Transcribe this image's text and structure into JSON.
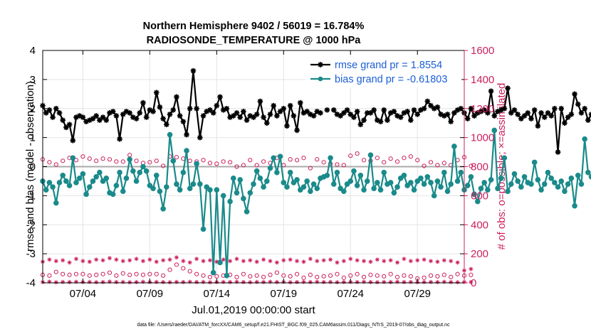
{
  "chart_data": {
    "type": "line",
    "title": "Northern Hemisphere 9402 / 56019 = 16.784%",
    "subtitle": "RADIOSONDE_TEMPERATURE @ 1000 hPa",
    "xlabel": "Jul.01,2019 00:00:00 start",
    "ylabel_left": "rmse and bias (model - observation)",
    "ylabel_right": "# of obs: o=possible; ×=assimilated",
    "footer": "data file: /Users/raeder/DAI/ATM_forcXX/CAM6_setup/f.e21.FHIST_BGC.f09_025.CAM6assim.011/Diags_NTrS_2019-07/obs_diag_output.nc",
    "x_range": [
      0,
      31.5
    ],
    "x_ticks": [
      {
        "value": 3,
        "label": "07/04"
      },
      {
        "value": 8,
        "label": "07/09"
      },
      {
        "value": 13,
        "label": "07/14"
      },
      {
        "value": 18,
        "label": "07/19"
      },
      {
        "value": 23,
        "label": "07/24"
      },
      {
        "value": 28,
        "label": "07/29"
      }
    ],
    "y_left_range": [
      -4,
      4
    ],
    "y_left_ticks": [
      "-4",
      "-3",
      "-2",
      "-1",
      "0",
      "1",
      "2",
      "3",
      "4"
    ],
    "y_right_range": [
      0,
      1600
    ],
    "y_right_ticks": [
      "0",
      "200",
      "400",
      "600",
      "800",
      "1000",
      "1200",
      "1400",
      "1600"
    ],
    "grid": true,
    "legend_position": "top-right",
    "colors": {
      "rmse": "#000000",
      "bias": "#1a8a8a",
      "obs": "#cc1f5e",
      "axis_right": "#cc1f5e",
      "legend_text": "#1a5fd6",
      "zero_line": "#aaaaaa",
      "grid": "#e4e4e4"
    },
    "series": [
      {
        "name": "rmse grand pr = 1.8554",
        "axis": "left",
        "x_start": 0,
        "x_step": 0.25,
        "values": [
          2.1,
          1.85,
          1.95,
          1.7,
          2.0,
          1.85,
          1.6,
          1.35,
          1.45,
          0.9,
          1.7,
          1.75,
          1.7,
          1.55,
          1.6,
          1.65,
          1.75,
          1.6,
          1.7,
          1.6,
          1.85,
          1.9,
          1.75,
          0.95,
          1.8,
          1.9,
          1.85,
          1.7,
          1.65,
          1.85,
          2.2,
          1.7,
          1.95,
          1.9,
          2.55,
          2.05,
          1.65,
          1.45,
          1.8,
          1.95,
          2.4,
          1.75,
          1.55,
          1.1,
          2.0,
          3.3,
          2.0,
          1.0,
          1.75,
          1.9,
          1.95,
          1.85,
          2.1,
          2.4,
          1.95,
          2.0,
          1.7,
          1.75,
          1.85,
          1.7,
          1.9,
          1.6,
          1.75,
          1.7,
          1.8,
          2.25,
          1.7,
          1.5,
          1.8,
          2.1,
          1.75,
          1.9,
          2.0,
          1.4,
          2.1,
          1.75,
          1.25,
          2.2,
          1.85,
          1.9,
          1.8,
          1.75,
          1.9,
          1.85,
          null,
          1.95,
          null,
          1.95,
          1.8,
          1.75,
          1.85,
          1.95,
          1.8,
          1.7,
          1.9,
          1.45,
          1.6,
          1.85,
          1.85,
          1.95,
          1.6,
          1.55,
          1.95,
          1.6,
          1.85,
          1.9,
          1.75,
          1.7,
          1.85,
          1.9,
          1.6,
          1.95,
          1.8,
          1.95,
          2.0,
          2.25,
          2.1,
          2.0,
          2.05,
          1.8,
          1.75,
          1.8,
          1.55,
          1.85,
          1.95,
          2.0,
          1.85,
          1.65,
          2.0,
          1.75,
          1.85,
          1.9,
          1.95,
          1.85,
          2.6,
          1.75,
          1.9,
          1.95,
          2.0,
          2.7,
          1.85,
          1.95,
          1.8,
          1.65,
          1.75,
          1.85,
          1.65,
          1.95,
          1.4,
          1.85,
          1.7,
          1.85,
          1.75,
          2.0,
          0.5,
          2.0,
          1.5,
          1.7,
          1.8,
          2.5,
          2.15,
          1.85,
          2.0,
          1.6,
          1.8,
          1.2,
          1.95,
          1.25,
          1.2,
          1.8,
          1.7,
          1.85,
          2.2,
          0.8
        ]
      },
      {
        "name": "bias grand pr = -0.61803",
        "axis": "left",
        "x_start": 0,
        "x_step": 0.25,
        "values": [
          -0.5,
          -0.8,
          -0.55,
          -0.7,
          -1.25,
          -0.55,
          -0.3,
          -0.5,
          -0.65,
          0.3,
          -0.55,
          -0.4,
          -0.25,
          -0.95,
          -0.7,
          -0.5,
          -0.35,
          -0.2,
          -0.5,
          -0.4,
          -0.9,
          -0.95,
          -0.65,
          -0.2,
          -0.85,
          -0.4,
          0.25,
          -0.15,
          -0.5,
          -0.2,
          0.0,
          -0.15,
          -0.65,
          -0.75,
          -0.3,
          -0.85,
          -1.45,
          -0.7,
          1.1,
          0.2,
          -0.6,
          -0.8,
          -0.2,
          0.55,
          -0.75,
          -0.6,
          0.1,
          -0.6,
          -2.15,
          -0.7,
          -0.8,
          -3.65,
          -0.8,
          -3.3,
          -1.0,
          -3.75,
          -1.2,
          -0.4,
          -0.9,
          -0.45,
          -1.1,
          -1.55,
          -0.9,
          -0.6,
          -0.15,
          -0.4,
          -0.7,
          -0.5,
          -0.05,
          0.3,
          -0.2,
          0.35,
          -0.55,
          -0.7,
          -0.2,
          -0.55,
          -0.45,
          -0.8,
          -0.7,
          -0.5,
          -0.85,
          -0.6,
          -0.75,
          -0.4,
          -0.35,
          -0.3,
          0.3,
          -0.6,
          -0.2,
          -0.75,
          -0.85,
          -0.6,
          -0.5,
          -0.15,
          -0.65,
          -0.3,
          -0.8,
          -0.5,
          0.4,
          -0.75,
          -0.55,
          -0.8,
          -0.2,
          -0.6,
          -0.55,
          -0.9,
          -0.7,
          -0.4,
          -0.3,
          -0.65,
          -0.55,
          -0.8,
          -0.5,
          -0.4,
          -0.6,
          -0.35,
          -0.55,
          -1.0,
          -0.5,
          -0.7,
          -0.2,
          -0.85,
          -0.6,
          0.7,
          -0.5,
          -0.2,
          -0.8,
          -0.65,
          -0.35,
          -0.95,
          -1.2,
          -0.75,
          -0.55,
          -0.8,
          -0.45,
          1.25,
          -0.75,
          -0.4,
          0.3,
          -0.85,
          -0.6,
          -0.25,
          -0.5,
          -0.7,
          -0.35,
          -0.55,
          -0.6,
          0.15,
          -0.45,
          -0.8,
          -0.6,
          -0.2,
          -0.4,
          -0.55,
          -0.7,
          -0.5,
          -0.85,
          -0.6,
          -0.4,
          -1.35,
          -0.3,
          -0.6,
          0.95,
          -0.2,
          -0.35,
          -0.5,
          -0.75,
          -0.45,
          -0.6,
          -0.75,
          -0.55,
          -0.35,
          0.5,
          -0.4,
          -0.65,
          -1.55,
          -1.1,
          -0.7,
          -0.3,
          0.1,
          -0.35,
          -0.6,
          0.35,
          -0.25,
          -0.8,
          0.45,
          -0.75,
          -1.05,
          -0.5
        ]
      },
      {
        "name": "possible (upper)",
        "axis": "right",
        "marker": "circle",
        "x_start": 0,
        "x_step": 0.5,
        "values": [
          850,
          830,
          815,
          840,
          860,
          845,
          870,
          855,
          840,
          855,
          850,
          835,
          835,
          880,
          840,
          825,
          830,
          840,
          805,
          870,
          865,
          855,
          840,
          835,
          845,
          825,
          820,
          835,
          830,
          800,
          810,
          845,
          810,
          835,
          825,
          860,
          810,
          850,
          845,
          860,
          790,
          850,
          830,
          820,
          815,
          810,
          875,
          890,
          845,
          840,
          860,
          830,
          855,
          835,
          860,
          870,
          845,
          805,
          830,
          810,
          825,
          810,
          845,
          865,
          805
        ]
      },
      {
        "name": "possible (lower)",
        "axis": "right",
        "marker": "circle",
        "x_start": 0,
        "x_step": 0.5,
        "values": [
          55,
          50,
          75,
          60,
          55,
          60,
          60,
          50,
          55,
          60,
          70,
          50,
          65,
          55,
          60,
          55,
          60,
          60,
          50,
          90,
          125,
          100,
          80,
          60,
          50,
          40,
          45,
          50,
          55,
          40,
          60,
          45,
          50,
          40,
          55,
          70,
          50,
          45,
          60,
          35,
          55,
          40,
          45,
          50,
          60,
          35,
          50,
          60,
          40,
          55,
          50,
          45,
          60,
          40,
          50,
          45,
          30,
          35,
          50,
          45,
          55,
          40,
          60,
          50,
          55
        ]
      },
      {
        "name": "assimilated (upper)",
        "axis": "right",
        "marker": "asterisk",
        "x_start": 0,
        "x_step": 0.5,
        "values": [
          145,
          160,
          150,
          155,
          140,
          165,
          150,
          145,
          160,
          155,
          170,
          160,
          150,
          155,
          165,
          150,
          160,
          145,
          155,
          160,
          175,
          150,
          140,
          165,
          150,
          155,
          145,
          160,
          150,
          165,
          150,
          155,
          145,
          160,
          150,
          140,
          155,
          160,
          150,
          145,
          165,
          150,
          155,
          160,
          140,
          150,
          165,
          155,
          150,
          145,
          160,
          150,
          155,
          140,
          165,
          150,
          155,
          160,
          150,
          145,
          155,
          150,
          140,
          85,
          95
        ]
      },
      {
        "name": "assimilated (lower)",
        "axis": "right",
        "marker": "asterisk",
        "x_start": 0,
        "x_step": 0.5,
        "values": [
          5,
          8,
          4,
          6,
          5,
          7,
          5,
          6,
          4,
          5,
          8,
          5,
          6,
          4,
          5,
          7,
          5,
          6,
          5,
          4,
          6,
          5,
          7,
          5,
          6,
          4,
          5,
          6,
          5,
          7,
          5,
          4,
          6,
          5,
          7,
          5,
          6,
          4,
          5,
          6,
          5,
          7,
          5,
          6,
          4,
          5,
          6,
          5,
          7,
          5,
          4,
          6,
          5,
          7,
          5,
          6,
          4,
          5,
          6,
          5,
          7,
          5,
          4,
          6,
          5
        ]
      }
    ],
    "legend": [
      {
        "label": "rmse grand pr = 1.8554",
        "series": 0
      },
      {
        "label": "bias grand pr = -0.61803",
        "series": 1
      }
    ]
  }
}
